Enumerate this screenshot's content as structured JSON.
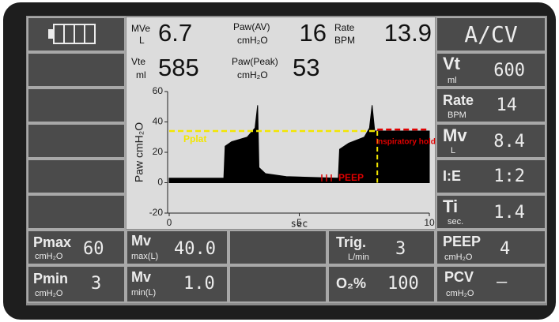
{
  "status": {
    "mode": "A/CV"
  },
  "readouts": [
    {
      "label": "MVe",
      "unit": "L",
      "value": 6.7
    },
    {
      "label": "Paw(AV)",
      "unit": "cmH₂O",
      "value": 16
    },
    {
      "label": "Rate",
      "unit": "BPM",
      "value": 13.9
    },
    {
      "label": "Vte",
      "unit": "ml",
      "value": 585
    },
    {
      "label": "Paw(Peak)",
      "unit": "cmH₂O",
      "value": 53
    }
  ],
  "settings": [
    {
      "label": "Vt",
      "unit": "ml",
      "value": 600
    },
    {
      "label": "Rate",
      "unit": "BPM",
      "value": 14
    },
    {
      "label": "Mv",
      "unit": "L",
      "value": 8.4
    },
    {
      "label": "I:E",
      "value": "1:2"
    },
    {
      "label": "Ti",
      "unit": "sec.",
      "value": 1.4
    }
  ],
  "limits": [
    [
      {
        "label": "Pmax",
        "unit": "cmH₂O",
        "value": 60
      },
      {
        "label": "Mv",
        "unit": "max(L)",
        "value": "40.0"
      },
      {
        "label": "Trig.",
        "unit": "L/min",
        "value": 3
      },
      {
        "label": "PEEP",
        "unit": "cmH₂O",
        "value": 4
      }
    ],
    [
      {
        "label": "Pmin",
        "unit": "cmH₂O",
        "value": 3
      },
      {
        "label": "Mv",
        "unit": "min(L)",
        "value": "1.0"
      },
      {
        "label": "O₂%",
        "value": 100
      },
      {
        "label": "PCV",
        "unit": "cmH₂O",
        "value": "–"
      }
    ]
  ],
  "chart_data": {
    "type": "area",
    "y_label": "Paw cmH₂O",
    "x_label": "sec",
    "xlim": [
      0,
      10
    ],
    "ylim": [
      -20,
      60
    ],
    "xticks": [
      0,
      5,
      10
    ],
    "yticks": [
      60,
      40,
      20,
      0,
      -20
    ],
    "x": [
      0,
      2.1,
      2.15,
      2.4,
      3.0,
      3.3,
      3.4,
      3.45,
      3.7,
      4.5,
      6.5,
      6.55,
      6.9,
      7.5,
      7.7,
      7.8,
      7.9,
      10
    ],
    "values": [
      3,
      3,
      24,
      27,
      30,
      36,
      51,
      10,
      6,
      4,
      3,
      22,
      26,
      30,
      36,
      51,
      34,
      34
    ],
    "color": "#000000",
    "annotations": [
      {
        "text": "Pplat",
        "value": 34,
        "color": "#f2e600"
      },
      {
        "text": "Inspiratory hold",
        "value": 35,
        "x": [
          8.0,
          10
        ],
        "color": "#e00000"
      },
      {
        "text": "PEEP",
        "color": "#e00000"
      }
    ]
  }
}
